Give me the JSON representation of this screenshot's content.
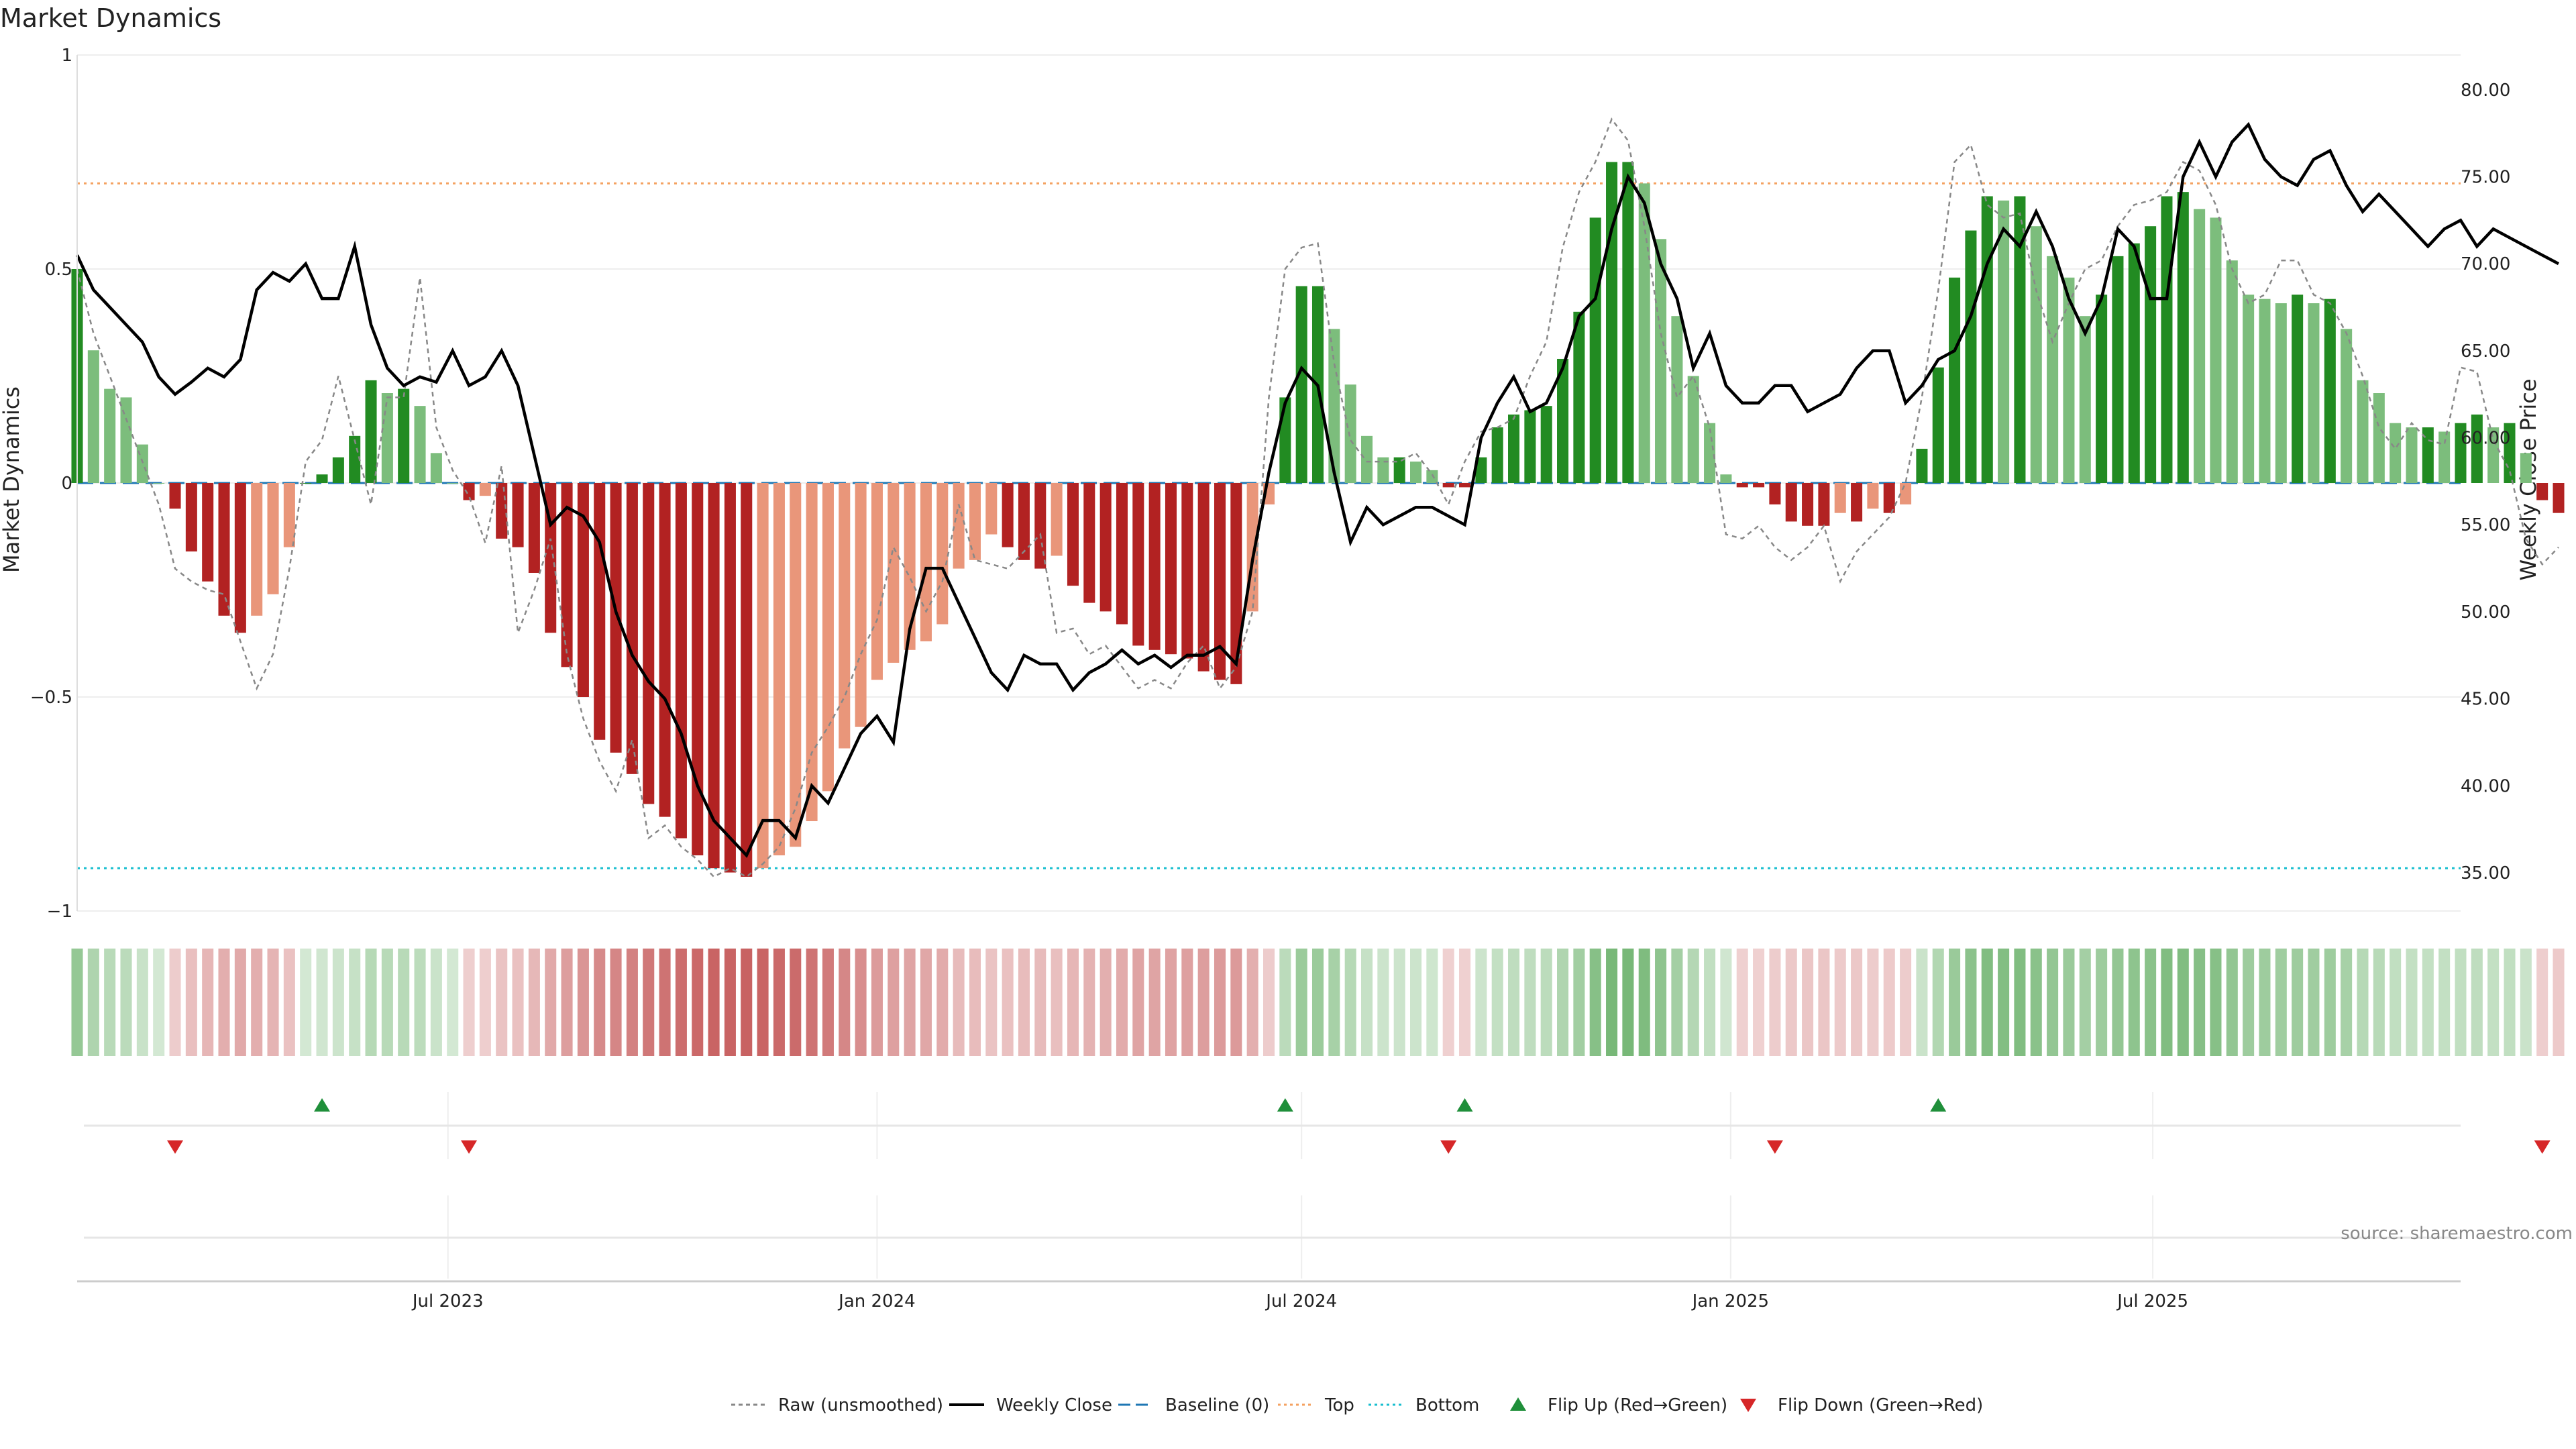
{
  "chart_data": {
    "type": "bar",
    "title": "Market Dynamics",
    "ylabel_left": "Market Dynamics",
    "ylabel_right": "Weekly Close Price",
    "left_ylim": [
      -1,
      1
    ],
    "left_yticks": [
      {
        "value": 1,
        "label": "1"
      },
      {
        "value": 0.5,
        "label": "0.5"
      },
      {
        "value": 0,
        "label": "0"
      },
      {
        "value": -0.5,
        "label": "−0.5"
      },
      {
        "value": -1,
        "label": "−1"
      }
    ],
    "right_ylim": [
      32.8,
      82.0
    ],
    "right_yticks": [
      {
        "value": 80,
        "label": "80.00"
      },
      {
        "value": 75,
        "label": "75.00"
      },
      {
        "value": 70,
        "label": "70.00"
      },
      {
        "value": 65,
        "label": "65.00"
      },
      {
        "value": 60,
        "label": "60.00"
      },
      {
        "value": 55,
        "label": "55.00"
      },
      {
        "value": 50,
        "label": "50.00"
      },
      {
        "value": 45,
        "label": "45.00"
      },
      {
        "value": 40,
        "label": "40.00"
      },
      {
        "value": 35,
        "label": "35.00"
      }
    ],
    "x_range": [
      "2023-01-23",
      "2025-11-10"
    ],
    "x_ticks": [
      {
        "date": "2023-07-01",
        "label": "Jul 2023"
      },
      {
        "date": "2024-01-01",
        "label": "Jan 2024"
      },
      {
        "date": "2024-07-01",
        "label": "Jul 2024"
      },
      {
        "date": "2025-01-01",
        "label": "Jan 2025"
      },
      {
        "date": "2025-07-01",
        "label": "Jul 2025"
      }
    ],
    "start_date": "2023-01-23",
    "week_step_days": 7,
    "top_threshold": 0.7,
    "bottom_threshold": -0.9,
    "baseline": 0,
    "market_dynamics": [
      0.5,
      0.31,
      0.22,
      0.2,
      0.09,
      0.0,
      -0.06,
      -0.16,
      -0.23,
      -0.31,
      -0.35,
      -0.31,
      -0.26,
      -0.15,
      0.0,
      0.02,
      0.06,
      0.11,
      0.24,
      0.21,
      0.22,
      0.18,
      0.07,
      0.0,
      -0.04,
      -0.03,
      -0.13,
      -0.15,
      -0.21,
      -0.35,
      -0.43,
      -0.5,
      -0.6,
      -0.63,
      -0.68,
      -0.75,
      -0.78,
      -0.83,
      -0.87,
      -0.9,
      -0.91,
      -0.92,
      -0.9,
      -0.87,
      -0.85,
      -0.79,
      -0.72,
      -0.62,
      -0.57,
      -0.46,
      -0.42,
      -0.39,
      -0.37,
      -0.33,
      -0.2,
      -0.18,
      -0.12,
      -0.15,
      -0.18,
      -0.2,
      -0.17,
      -0.24,
      -0.28,
      -0.3,
      -0.33,
      -0.38,
      -0.39,
      -0.4,
      -0.41,
      -0.44,
      -0.46,
      -0.47,
      -0.3,
      -0.05,
      0.2,
      0.46,
      0.46,
      0.36,
      0.23,
      0.11,
      0.06,
      0.06,
      0.05,
      0.03,
      -0.01,
      -0.01,
      0.06,
      0.13,
      0.16,
      0.17,
      0.18,
      0.29,
      0.4,
      0.62,
      0.75,
      0.75,
      0.7,
      0.57,
      0.39,
      0.25,
      0.14,
      0.02,
      -0.01,
      -0.01,
      -0.05,
      -0.09,
      -0.1,
      -0.1,
      -0.07,
      -0.09,
      -0.06,
      -0.07,
      -0.05,
      0.08,
      0.27,
      0.48,
      0.59,
      0.67,
      0.66,
      0.67,
      0.6,
      0.53,
      0.48,
      0.39,
      0.44,
      0.53,
      0.56,
      0.6,
      0.67,
      0.68,
      0.64,
      0.62,
      0.52,
      0.44,
      0.43,
      0.42,
      0.44,
      0.42,
      0.43,
      0.36,
      0.24,
      0.21,
      0.14,
      0.13,
      0.13,
      0.12,
      0.14,
      0.16,
      0.13,
      0.14,
      0.07,
      -0.04,
      -0.07
    ],
    "raw_unsmoothed": [
      0.5,
      0.35,
      0.25,
      0.15,
      0.05,
      -0.05,
      -0.2,
      -0.23,
      -0.25,
      -0.26,
      -0.37,
      -0.48,
      -0.4,
      -0.2,
      0.05,
      0.1,
      0.25,
      0.1,
      -0.05,
      0.2,
      0.2,
      0.48,
      0.13,
      0.03,
      -0.03,
      -0.14,
      0.04,
      -0.35,
      -0.25,
      -0.13,
      -0.4,
      -0.55,
      -0.65,
      -0.72,
      -0.6,
      -0.83,
      -0.8,
      -0.85,
      -0.88,
      -0.92,
      -0.9,
      -0.92,
      -0.89,
      -0.85,
      -0.76,
      -0.63,
      -0.57,
      -0.5,
      -0.4,
      -0.32,
      -0.15,
      -0.22,
      -0.3,
      -0.23,
      -0.05,
      -0.18,
      -0.19,
      -0.2,
      -0.16,
      -0.12,
      -0.35,
      -0.34,
      -0.4,
      -0.38,
      -0.43,
      -0.48,
      -0.46,
      -0.48,
      -0.42,
      -0.38,
      -0.48,
      -0.43,
      -0.3,
      0.2,
      0.5,
      0.55,
      0.56,
      0.28,
      0.1,
      0.05,
      0.05,
      0.05,
      0.07,
      0.02,
      -0.05,
      0.05,
      0.12,
      0.13,
      0.15,
      0.25,
      0.33,
      0.55,
      0.68,
      0.75,
      0.85,
      0.8,
      0.6,
      0.35,
      0.2,
      0.25,
      0.13,
      -0.12,
      -0.13,
      -0.1,
      -0.15,
      -0.18,
      -0.15,
      -0.1,
      -0.23,
      -0.16,
      -0.12,
      -0.08,
      0.0,
      0.2,
      0.45,
      0.75,
      0.79,
      0.65,
      0.62,
      0.63,
      0.45,
      0.33,
      0.42,
      0.5,
      0.52,
      0.6,
      0.65,
      0.66,
      0.68,
      0.75,
      0.73,
      0.65,
      0.5,
      0.42,
      0.44,
      0.52,
      0.52,
      0.44,
      0.42,
      0.35,
      0.25,
      0.13,
      0.08,
      0.14,
      0.1,
      0.09,
      0.27,
      0.26,
      0.1,
      0.03,
      -0.13,
      -0.19,
      -0.15
    ],
    "weekly_close": [
      70.5,
      68.5,
      67.5,
      66.5,
      65.5,
      63.5,
      62.5,
      63.2,
      64.0,
      63.5,
      64.5,
      68.5,
      69.5,
      69.0,
      70.0,
      68.0,
      68.0,
      71.0,
      66.5,
      64.0,
      63.0,
      63.5,
      63.2,
      65.0,
      63.0,
      63.5,
      65.0,
      63.0,
      59.0,
      55.0,
      56.0,
      55.5,
      54.0,
      50.0,
      47.5,
      46.0,
      45.0,
      43.0,
      40.0,
      38.0,
      37.0,
      36.0,
      38.0,
      38.0,
      37.0,
      40.0,
      39.0,
      41.0,
      43.0,
      44.0,
      42.5,
      49.0,
      52.5,
      52.5,
      50.5,
      48.5,
      46.5,
      45.5,
      47.5,
      47.0,
      47.0,
      45.5,
      46.5,
      47.0,
      47.8,
      47.0,
      47.5,
      46.8,
      47.5,
      47.5,
      48.0,
      47.0,
      53.0,
      58.0,
      62.0,
      64.0,
      63.0,
      58.0,
      54.0,
      56.0,
      55.0,
      55.5,
      56.0,
      56.0,
      55.5,
      55.0,
      60.0,
      62.0,
      63.5,
      61.5,
      62.0,
      64.0,
      67.0,
      68.0,
      72.0,
      75.0,
      73.5,
      70.0,
      68.0,
      64.0,
      66.0,
      63.0,
      62.0,
      62.0,
      63.0,
      63.0,
      61.5,
      62.0,
      62.5,
      64.0,
      65.0,
      65.0,
      62.0,
      63.0,
      64.5,
      65.0,
      67.0,
      70.0,
      72.0,
      71.0,
      73.0,
      71.0,
      68.0,
      66.0,
      68.0,
      72.0,
      71.0,
      68.0,
      68.0,
      75.0,
      77.0,
      75.0,
      77.0,
      78.0,
      76.0,
      75.0,
      74.5,
      76.0,
      76.5,
      74.5,
      73.0,
      74.0,
      73.0,
      72.0,
      71.0,
      72.0,
      72.5,
      71.0,
      72.0,
      71.5,
      71.0,
      70.5,
      70.0
    ],
    "flip_up_weeks": [
      15,
      74,
      85,
      114
    ],
    "flip_down_weeks": [
      6,
      24,
      84,
      104,
      151
    ],
    "legend": [
      "Raw (unsmoothed)",
      "Weekly Close",
      "Baseline (0)",
      "Top",
      "Bottom",
      "Flip Up (Red→Green)",
      "Flip Down (Green→Red)"
    ],
    "source": "source: sharemaestro.com",
    "colors": {
      "green_strong": "#228b22",
      "green_light": "#7cbd7c",
      "red_strong": "#b22222",
      "red_light": "#e9967a",
      "close_line": "#000000",
      "raw_line": "#888888",
      "baseline": "#1f77b4",
      "top_line": "#f4a261",
      "bottom_line": "#17becf",
      "strip_green": "#228b22",
      "strip_red": "#b22222",
      "flip_up": "#1f8f3a",
      "flip_down": "#d62728"
    }
  }
}
